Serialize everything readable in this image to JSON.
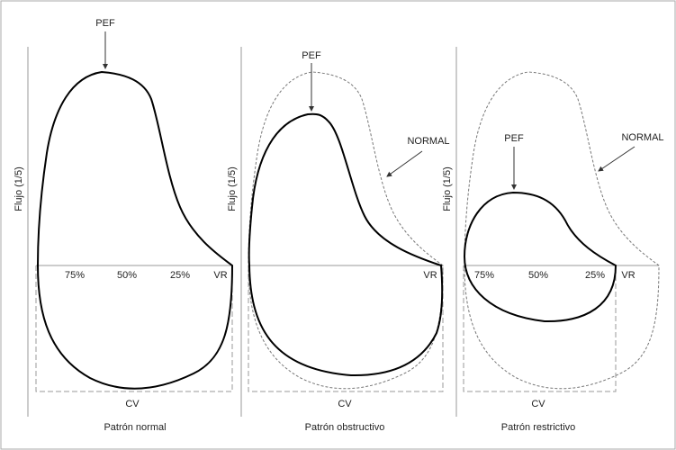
{
  "y_axis_label": "Flujo (1/5)",
  "x_axis_label": "CV",
  "peak_label": "PEF",
  "normal_label": "NORMAL",
  "residual_label": "VR",
  "percent_labels": [
    "75%",
    "50%",
    "25%"
  ],
  "panels": [
    {
      "caption": "Patrón normal"
    },
    {
      "caption": "Patrón obstructivo"
    },
    {
      "caption": "Patrón restrictivo"
    }
  ],
  "colors": {
    "loop": "#000000",
    "reference": "#777777",
    "axis": "#999999"
  }
}
